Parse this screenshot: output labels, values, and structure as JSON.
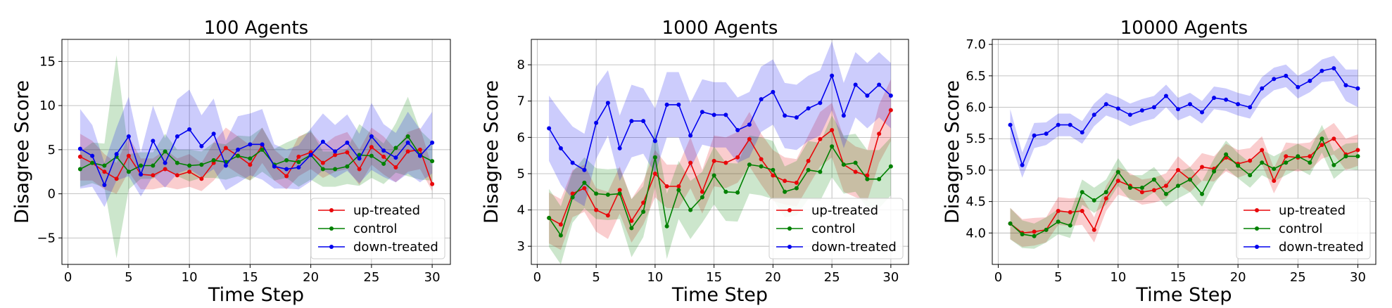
{
  "chart_data": [
    {
      "type": "line",
      "title": "100 Agents",
      "xlabel": "Time Step",
      "ylabel": "Disagree Score",
      "xlim": [
        -0.5,
        31.5
      ],
      "ylim": [
        -8,
        17.5
      ],
      "xticks": [
        0,
        5,
        10,
        15,
        20,
        25,
        30
      ],
      "yticks": [
        -5,
        0,
        5,
        10,
        15
      ],
      "grid": true,
      "legend": "lower-right",
      "x": [
        1,
        2,
        3,
        4,
        5,
        6,
        7,
        8,
        9,
        10,
        11,
        12,
        13,
        14,
        15,
        16,
        17,
        18,
        19,
        20,
        21,
        22,
        23,
        24,
        25,
        26,
        27,
        28,
        29,
        30
      ],
      "series": [
        {
          "name": "up-treated",
          "color": "#e8070a",
          "values": [
            4.2,
            3.5,
            2.5,
            1.7,
            4.3,
            2.2,
            2.1,
            2.8,
            2.1,
            2.5,
            1.7,
            3.5,
            5.2,
            4.3,
            3.3,
            5.5,
            3.2,
            2.0,
            4.2,
            4.7,
            3.5,
            4.4,
            4.7,
            2.8,
            5.3,
            4.2,
            3.0,
            4.8,
            5.0,
            1.1
          ],
          "lower": [
            1.5,
            1.5,
            0.5,
            0.0,
            2.5,
            0.5,
            0.5,
            0.8,
            0.5,
            0.8,
            0.3,
            1.5,
            3.2,
            2.3,
            1.5,
            3.5,
            1.5,
            0.5,
            2.0,
            2.8,
            1.8,
            2.5,
            2.8,
            1.0,
            3.3,
            2.2,
            1.3,
            2.5,
            2.8,
            0.3
          ],
          "upper": [
            6.8,
            6.0,
            4.5,
            3.5,
            6.5,
            4.0,
            4.0,
            5.0,
            4.0,
            4.5,
            3.5,
            5.8,
            7.5,
            6.5,
            5.5,
            7.5,
            5.0,
            3.8,
            6.5,
            7.0,
            5.5,
            6.5,
            7.0,
            5.0,
            7.5,
            6.5,
            5.0,
            7.0,
            7.5,
            3.0
          ],
          "std": [
            2.7,
            2.3,
            2.0,
            1.7,
            2.0,
            1.7,
            1.7,
            2.1,
            1.7,
            1.9,
            1.6,
            2.2,
            2.2,
            2.1,
            1.9,
            2.0,
            1.7,
            1.6,
            2.2,
            2.1,
            1.8,
            2.0,
            2.1,
            1.9,
            2.1,
            2.1,
            1.8,
            2.2,
            2.3,
            1.3
          ]
        },
        {
          "name": "control",
          "color": "#008000",
          "values": [
            2.8,
            3.5,
            3.2,
            4.2,
            2.5,
            3.2,
            3.2,
            4.8,
            3.5,
            3.2,
            3.3,
            3.8,
            3.6,
            4.3,
            4.0,
            5.0,
            3.3,
            3.8,
            3.6,
            4.4,
            2.8,
            2.8,
            3.1,
            4.4,
            4.3,
            3.4,
            5.2,
            6.5,
            4.4,
            3.7
          ],
          "std": [
            2.0,
            2.3,
            2.5,
            11.5,
            2.0,
            1.5,
            1.5,
            2.0,
            1.5,
            1.8,
            1.5,
            2.0,
            2.0,
            2.3,
            2.5,
            2.5,
            1.8,
            2.0,
            2.8,
            2.8,
            2.0,
            2.0,
            2.0,
            3.5,
            2.5,
            2.3,
            2.8,
            4.5,
            2.8,
            2.2
          ]
        },
        {
          "name": "down-treated",
          "color": "#0000ee",
          "values": [
            5.1,
            4.3,
            1.0,
            4.5,
            6.5,
            2.2,
            6.0,
            3.5,
            6.5,
            7.3,
            5.4,
            6.8,
            3.2,
            5.0,
            5.6,
            5.6,
            3.1,
            2.8,
            3.0,
            4.4,
            5.9,
            4.8,
            5.8,
            4.0,
            6.5,
            4.9,
            4.1,
            5.8,
            4.3,
            5.8
          ],
          "std": [
            4.5,
            3.5,
            2.5,
            3.0,
            4.5,
            2.5,
            4.0,
            2.8,
            4.2,
            4.5,
            3.5,
            4.0,
            2.8,
            3.8,
            3.5,
            4.0,
            2.5,
            2.2,
            2.5,
            3.0,
            3.2,
            3.0,
            3.2,
            2.8,
            3.8,
            3.0,
            2.8,
            3.5,
            3.0,
            3.5
          ]
        }
      ]
    },
    {
      "type": "line",
      "title": "1000 Agents",
      "xlabel": "Time Step",
      "ylabel": "Disagree Score",
      "xlim": [
        -0.5,
        31.5
      ],
      "ylim": [
        2.5,
        8.7
      ],
      "xticks": [
        0,
        5,
        10,
        15,
        20,
        25,
        30
      ],
      "yticks": [
        3,
        4,
        5,
        6,
        7,
        8
      ],
      "grid": true,
      "legend": "lower-right",
      "x": [
        1,
        2,
        3,
        4,
        5,
        6,
        7,
        8,
        9,
        10,
        11,
        12,
        13,
        14,
        15,
        16,
        17,
        18,
        19,
        20,
        21,
        22,
        23,
        24,
        25,
        26,
        27,
        28,
        29,
        30
      ],
      "series": [
        {
          "name": "up-treated",
          "color": "#e8070a",
          "values": [
            3.78,
            3.6,
            4.45,
            4.6,
            4.0,
            3.85,
            4.55,
            3.7,
            4.2,
            5.0,
            4.65,
            4.65,
            5.3,
            4.5,
            5.35,
            5.3,
            5.45,
            5.95,
            5.4,
            4.95,
            4.8,
            4.75,
            5.35,
            5.95,
            6.2,
            5.25,
            5.05,
            4.95,
            6.1,
            6.75
          ],
          "std": [
            0.7,
            0.7,
            0.65,
            0.65,
            0.6,
            0.65,
            0.65,
            0.6,
            0.6,
            0.65,
            0.6,
            0.6,
            0.7,
            0.6,
            0.7,
            0.7,
            0.7,
            0.75,
            0.7,
            0.7,
            0.65,
            0.65,
            0.7,
            0.75,
            0.75,
            0.75,
            0.7,
            0.7,
            0.8,
            0.85
          ]
        },
        {
          "name": "control",
          "color": "#008000",
          "values": [
            3.78,
            3.3,
            4.35,
            4.75,
            4.45,
            4.42,
            4.45,
            3.5,
            3.95,
            5.45,
            3.55,
            4.55,
            4.0,
            4.35,
            4.95,
            4.5,
            4.48,
            5.25,
            5.2,
            5.1,
            4.5,
            4.6,
            5.1,
            5.05,
            5.75,
            5.25,
            5.3,
            4.85,
            4.85,
            5.2
          ],
          "std": [
            0.8,
            0.8,
            0.7,
            0.7,
            0.7,
            0.7,
            0.7,
            0.8,
            0.7,
            0.8,
            0.9,
            0.8,
            0.8,
            0.7,
            0.8,
            0.8,
            0.8,
            0.8,
            0.8,
            0.8,
            0.7,
            0.75,
            0.8,
            0.8,
            0.85,
            0.8,
            0.8,
            0.8,
            0.8,
            0.8
          ]
        },
        {
          "name": "down-treated",
          "color": "#0000ee",
          "values": [
            6.25,
            5.7,
            5.3,
            5.1,
            6.4,
            6.95,
            5.7,
            6.45,
            6.45,
            5.9,
            6.9,
            6.9,
            6.05,
            6.7,
            6.62,
            6.62,
            6.2,
            6.35,
            7.05,
            7.25,
            6.6,
            6.55,
            6.8,
            6.95,
            7.7,
            6.6,
            7.45,
            7.15,
            7.45,
            7.15
          ],
          "std": [
            0.9,
            1.0,
            1.0,
            1.0,
            1.0,
            0.9,
            0.9,
            1.0,
            0.9,
            0.9,
            0.9,
            0.9,
            0.9,
            0.9,
            0.9,
            0.9,
            0.9,
            0.9,
            0.9,
            0.9,
            0.9,
            0.9,
            0.9,
            0.9,
            0.95,
            0.9,
            0.9,
            0.9,
            0.9,
            0.9
          ]
        }
      ]
    },
    {
      "type": "line",
      "title": "10000 Agents",
      "xlabel": "Time Step",
      "ylabel": "Disagree Score",
      "xlim": [
        -0.5,
        31.5
      ],
      "ylim": [
        3.5,
        7.08
      ],
      "xticks": [
        0,
        5,
        10,
        15,
        20,
        25,
        30
      ],
      "yticks": [
        4.0,
        4.5,
        5.0,
        5.5,
        6.0,
        6.5,
        7.0
      ],
      "ytick_labels": [
        "4.0",
        "4.5",
        "5.0",
        "5.5",
        "6.0",
        "6.5",
        "7.0"
      ],
      "grid": true,
      "legend": "lower-right",
      "x": [
        1,
        2,
        3,
        4,
        5,
        6,
        7,
        8,
        9,
        10,
        11,
        12,
        13,
        14,
        15,
        16,
        17,
        18,
        19,
        20,
        21,
        22,
        23,
        24,
        25,
        26,
        27,
        28,
        29,
        30
      ],
      "series": [
        {
          "name": "up-treated",
          "color": "#e8070a",
          "values": [
            4.15,
            4.0,
            4.02,
            4.05,
            4.35,
            4.33,
            4.35,
            4.05,
            4.55,
            4.83,
            4.75,
            4.65,
            4.68,
            4.75,
            5.0,
            4.85,
            5.05,
            5.02,
            5.2,
            5.1,
            5.15,
            5.32,
            4.83,
            5.22,
            5.2,
            5.22,
            5.4,
            5.5,
            5.25,
            5.32
          ],
          "std": [
            0.25,
            0.22,
            0.22,
            0.2,
            0.22,
            0.22,
            0.22,
            0.2,
            0.2,
            0.22,
            0.2,
            0.2,
            0.2,
            0.2,
            0.22,
            0.2,
            0.22,
            0.2,
            0.22,
            0.22,
            0.2,
            0.22,
            0.2,
            0.22,
            0.22,
            0.22,
            0.22,
            0.25,
            0.25,
            0.25
          ]
        },
        {
          "name": "control",
          "color": "#008000",
          "values": [
            4.15,
            3.98,
            3.95,
            4.05,
            4.18,
            4.12,
            4.65,
            4.52,
            4.65,
            4.97,
            4.72,
            4.72,
            4.85,
            4.62,
            4.75,
            4.85,
            4.62,
            4.98,
            5.25,
            5.07,
            4.92,
            5.12,
            5.02,
            5.12,
            5.22,
            5.12,
            5.5,
            5.08,
            5.22,
            5.22
          ],
          "std": [
            0.25,
            0.22,
            0.2,
            0.2,
            0.2,
            0.2,
            0.2,
            0.2,
            0.2,
            0.22,
            0.2,
            0.2,
            0.2,
            0.2,
            0.2,
            0.2,
            0.2,
            0.2,
            0.22,
            0.2,
            0.2,
            0.2,
            0.2,
            0.2,
            0.2,
            0.2,
            0.22,
            0.22,
            0.2,
            0.22
          ]
        },
        {
          "name": "down-treated",
          "color": "#0000ee",
          "values": [
            5.72,
            5.08,
            5.55,
            5.58,
            5.72,
            5.72,
            5.6,
            5.88,
            6.05,
            5.98,
            5.88,
            5.95,
            6.0,
            6.18,
            5.97,
            6.05,
            5.92,
            6.15,
            6.12,
            6.05,
            6.0,
            6.3,
            6.45,
            6.5,
            6.32,
            6.42,
            6.58,
            6.62,
            6.35,
            6.3
          ],
          "std": [
            0.25,
            0.2,
            0.2,
            0.18,
            0.18,
            0.18,
            0.18,
            0.18,
            0.18,
            0.18,
            0.18,
            0.18,
            0.18,
            0.18,
            0.18,
            0.18,
            0.18,
            0.18,
            0.18,
            0.18,
            0.18,
            0.18,
            0.18,
            0.18,
            0.18,
            0.18,
            0.18,
            0.2,
            0.25,
            0.3
          ]
        }
      ]
    }
  ]
}
